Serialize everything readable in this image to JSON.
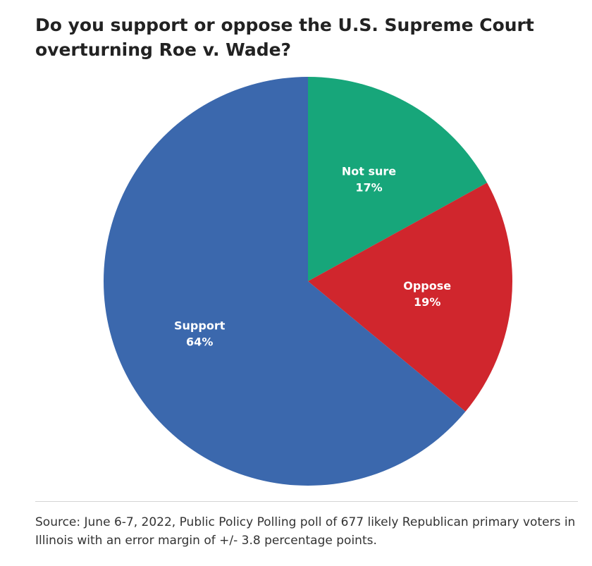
{
  "chart_data": {
    "type": "pie",
    "title": "Do you support or oppose the U.S. Supreme Court overturning Roe v. Wade?",
    "slices": [
      {
        "label": "Not sure",
        "value": 17,
        "value_label": "17%",
        "color": "#17a67a"
      },
      {
        "label": "Oppose",
        "value": 19,
        "value_label": "19%",
        "color": "#d0262d"
      },
      {
        "label": "Support",
        "value": 64,
        "value_label": "64%",
        "color": "#3b68ad"
      }
    ],
    "start": "12 o'clock",
    "direction": "clockwise",
    "legend": "none",
    "source": "Source: June 6-7, 2022, Public Policy Polling poll of 677 likely Republican primary voters in Illinois with an error margin of +/- 3.8 percentage points."
  }
}
